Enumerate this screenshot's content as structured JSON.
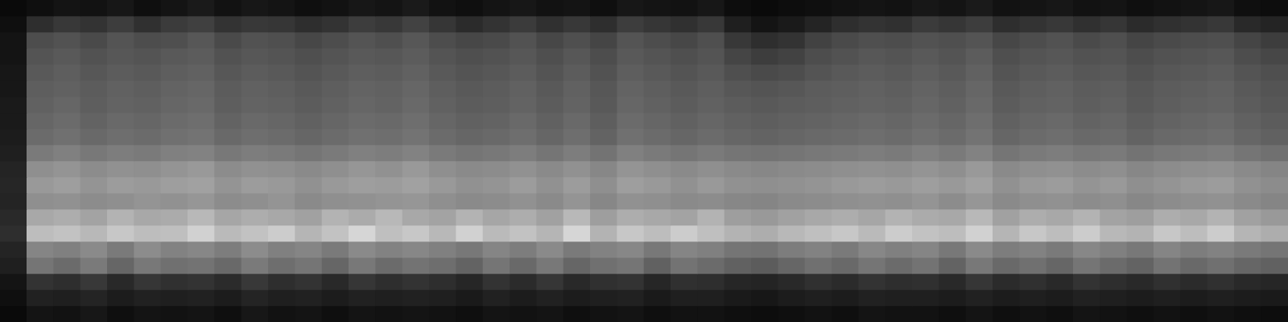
{
  "chart_data": {
    "type": "heatmap",
    "tick_labels": false,
    "grid": false,
    "zlim": [
      0,
      100
    ],
    "cells": [
      [
        4,
        6,
        8,
        7,
        9,
        6,
        8,
        10,
        7,
        9,
        8,
        6,
        7,
        9,
        8,
        10,
        7,
        6,
        8,
        9,
        7,
        8,
        6,
        9,
        8,
        7,
        9,
        5,
        4,
        5,
        6,
        7,
        8,
        7,
        9,
        8,
        10,
        7,
        8,
        9,
        7,
        8,
        6,
        7,
        8,
        9,
        6,
        5
      ],
      [
        6,
        18,
        22,
        20,
        24,
        19,
        23,
        25,
        20,
        22,
        21,
        18,
        20,
        24,
        22,
        26,
        21,
        17,
        20,
        23,
        19,
        22,
        18,
        24,
        21,
        19,
        22,
        12,
        8,
        10,
        14,
        18,
        20,
        19,
        23,
        21,
        24,
        18,
        20,
        22,
        19,
        21,
        17,
        19,
        20,
        22,
        16,
        14
      ],
      [
        8,
        30,
        32,
        29,
        33,
        30,
        31,
        34,
        29,
        32,
        31,
        28,
        30,
        33,
        31,
        34,
        30,
        28,
        29,
        32,
        28,
        31,
        27,
        33,
        30,
        28,
        31,
        22,
        18,
        20,
        26,
        29,
        31,
        30,
        32,
        31,
        33,
        28,
        30,
        32,
        29,
        31,
        27,
        29,
        30,
        31,
        27,
        24
      ],
      [
        8,
        33,
        35,
        32,
        34,
        33,
        35,
        36,
        32,
        34,
        33,
        31,
        33,
        35,
        34,
        36,
        33,
        31,
        32,
        34,
        31,
        34,
        30,
        35,
        33,
        31,
        33,
        27,
        24,
        26,
        30,
        32,
        34,
        33,
        35,
        33,
        36,
        31,
        33,
        34,
        32,
        33,
        30,
        32,
        33,
        34,
        30,
        28
      ],
      [
        9,
        35,
        37,
        34,
        36,
        35,
        37,
        38,
        34,
        36,
        35,
        33,
        35,
        37,
        36,
        38,
        35,
        33,
        34,
        36,
        33,
        36,
        32,
        37,
        35,
        33,
        35,
        31,
        29,
        30,
        33,
        35,
        36,
        35,
        37,
        35,
        38,
        33,
        35,
        36,
        34,
        35,
        32,
        34,
        35,
        36,
        33,
        31
      ],
      [
        9,
        37,
        38,
        36,
        38,
        37,
        39,
        40,
        36,
        38,
        37,
        35,
        37,
        39,
        38,
        40,
        37,
        35,
        36,
        38,
        35,
        38,
        34,
        39,
        37,
        35,
        37,
        34,
        33,
        34,
        36,
        37,
        38,
        37,
        39,
        37,
        40,
        35,
        37,
        38,
        36,
        37,
        34,
        36,
        37,
        38,
        35,
        33
      ],
      [
        10,
        38,
        40,
        37,
        39,
        38,
        40,
        41,
        37,
        39,
        38,
        36,
        38,
        40,
        39,
        41,
        38,
        36,
        37,
        39,
        36,
        39,
        35,
        40,
        38,
        36,
        38,
        36,
        35,
        36,
        37,
        38,
        39,
        38,
        40,
        38,
        41,
        36,
        38,
        39,
        37,
        38,
        35,
        37,
        38,
        39,
        36,
        34
      ],
      [
        10,
        40,
        42,
        39,
        41,
        40,
        42,
        43,
        39,
        41,
        40,
        38,
        40,
        42,
        41,
        43,
        40,
        38,
        39,
        41,
        38,
        41,
        37,
        42,
        40,
        38,
        40,
        38,
        37,
        38,
        39,
        40,
        41,
        40,
        42,
        40,
        43,
        38,
        40,
        41,
        39,
        40,
        37,
        39,
        40,
        41,
        38,
        36
      ],
      [
        11,
        42,
        44,
        41,
        43,
        42,
        44,
        45,
        41,
        43,
        42,
        40,
        42,
        44,
        43,
        45,
        42,
        40,
        41,
        43,
        40,
        43,
        39,
        44,
        42,
        40,
        42,
        40,
        39,
        40,
        41,
        42,
        43,
        42,
        44,
        42,
        45,
        40,
        42,
        43,
        41,
        42,
        39,
        41,
        42,
        43,
        40,
        38
      ],
      [
        12,
        48,
        50,
        47,
        49,
        48,
        50,
        51,
        47,
        49,
        48,
        46,
        48,
        50,
        49,
        51,
        48,
        46,
        47,
        49,
        46,
        49,
        45,
        50,
        48,
        46,
        48,
        46,
        45,
        46,
        47,
        48,
        49,
        48,
        50,
        48,
        51,
        46,
        48,
        49,
        47,
        48,
        45,
        47,
        48,
        49,
        46,
        44
      ],
      [
        14,
        56,
        58,
        55,
        57,
        56,
        58,
        60,
        55,
        57,
        56,
        54,
        56,
        59,
        57,
        60,
        56,
        54,
        55,
        57,
        54,
        57,
        53,
        58,
        56,
        54,
        56,
        54,
        53,
        54,
        55,
        56,
        57,
        56,
        58,
        56,
        60,
        54,
        56,
        57,
        55,
        56,
        53,
        55,
        56,
        57,
        54,
        52
      ],
      [
        15,
        60,
        62,
        58,
        61,
        60,
        62,
        63,
        58,
        61,
        60,
        57,
        60,
        62,
        61,
        63,
        60,
        57,
        58,
        61,
        57,
        61,
        56,
        62,
        60,
        57,
        60,
        57,
        56,
        57,
        58,
        60,
        61,
        60,
        62,
        60,
        63,
        57,
        60,
        61,
        58,
        60,
        56,
        58,
        60,
        61,
        57,
        55
      ],
      [
        14,
        56,
        57,
        55,
        56,
        58,
        57,
        59,
        55,
        56,
        58,
        54,
        56,
        57,
        58,
        59,
        56,
        54,
        55,
        57,
        54,
        58,
        53,
        57,
        56,
        54,
        55,
        53,
        52,
        54,
        55,
        56,
        57,
        56,
        58,
        55,
        59,
        54,
        56,
        57,
        55,
        56,
        53,
        55,
        56,
        57,
        54,
        52
      ],
      [
        16,
        66,
        68,
        64,
        70,
        66,
        67,
        72,
        65,
        68,
        66,
        63,
        70,
        67,
        72,
        66,
        64,
        70,
        65,
        68,
        63,
        72,
        62,
        68,
        66,
        64,
        70,
        62,
        60,
        63,
        66,
        68,
        65,
        70,
        67,
        66,
        72,
        63,
        68,
        66,
        70,
        64,
        62,
        68,
        66,
        70,
        63,
        60
      ],
      [
        18,
        74,
        76,
        72,
        78,
        74,
        75,
        82,
        73,
        76,
        80,
        71,
        76,
        84,
        75,
        78,
        72,
        82,
        73,
        76,
        71,
        84,
        70,
        78,
        74,
        80,
        75,
        70,
        68,
        72,
        75,
        78,
        73,
        80,
        76,
        74,
        82,
        71,
        78,
        74,
        80,
        72,
        70,
        78,
        74,
        80,
        71,
        68
      ],
      [
        14,
        52,
        50,
        54,
        48,
        55,
        51,
        53,
        49,
        55,
        50,
        52,
        48,
        54,
        51,
        53,
        50,
        47,
        52,
        49,
        54,
        48,
        51,
        53,
        47,
        52,
        50,
        46,
        45,
        49,
        51,
        48,
        53,
        50,
        52,
        47,
        54,
        49,
        51,
        48,
        53,
        50,
        47,
        52,
        49,
        51,
        48,
        46
      ],
      [
        12,
        46,
        42,
        48,
        40,
        47,
        44,
        45,
        41,
        48,
        43,
        46,
        40,
        47,
        42,
        45,
        43,
        39,
        46,
        41,
        47,
        40,
        44,
        46,
        38,
        45,
        42,
        38,
        36,
        40,
        44,
        41,
        46,
        42,
        45,
        39,
        47,
        41,
        44,
        40,
        46,
        42,
        39,
        45,
        41,
        44,
        40,
        38
      ],
      [
        8,
        20,
        18,
        22,
        16,
        21,
        19,
        20,
        17,
        22,
        18,
        20,
        16,
        21,
        18,
        20,
        18,
        15,
        20,
        17,
        21,
        16,
        19,
        20,
        15,
        19,
        18,
        15,
        14,
        16,
        19,
        17,
        20,
        18,
        19,
        16,
        21,
        17,
        19,
        16,
        20,
        18,
        16,
        19,
        17,
        19,
        16,
        15
      ],
      [
        6,
        13,
        12,
        14,
        11,
        13,
        12,
        13,
        11,
        14,
        12,
        13,
        11,
        13,
        12,
        13,
        12,
        10,
        13,
        11,
        13,
        11,
        12,
        13,
        10,
        12,
        12,
        10,
        9,
        11,
        12,
        11,
        13,
        12,
        12,
        11,
        13,
        11,
        12,
        11,
        13,
        12,
        11,
        12,
        11,
        12,
        11,
        10
      ],
      [
        4,
        8,
        7,
        9,
        6,
        8,
        7,
        8,
        6,
        9,
        7,
        8,
        6,
        8,
        7,
        8,
        7,
        6,
        8,
        7,
        8,
        6,
        7,
        8,
        6,
        7,
        7,
        6,
        5,
        6,
        7,
        6,
        8,
        7,
        7,
        6,
        8,
        6,
        7,
        6,
        8,
        7,
        6,
        7,
        6,
        7,
        6,
        5
      ]
    ]
  }
}
